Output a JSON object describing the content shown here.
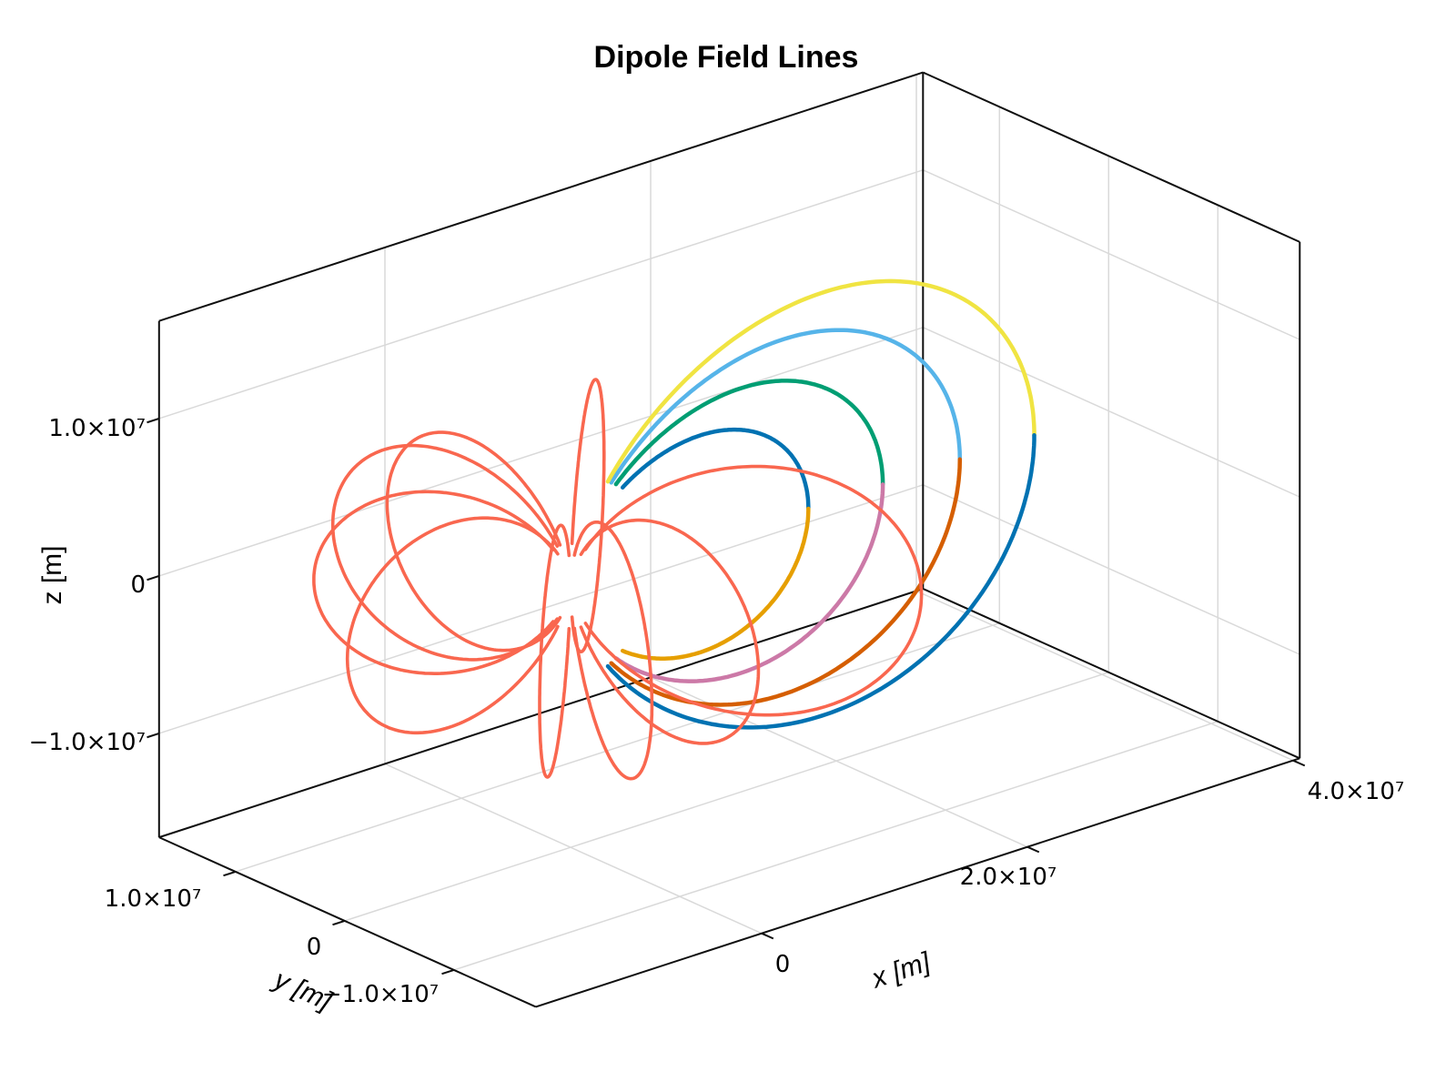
{
  "chart_data": {
    "type": "line",
    "subtype": "3d-field-lines",
    "title": "Dipole Field Lines",
    "xlabel": "x [m]",
    "ylabel": "y [m]",
    "zlabel": "z [m]",
    "xlim": [
      -17000000,
      40500000
    ],
    "ylim": [
      -17500000,
      17000000
    ],
    "zlim": [
      -16600000,
      16200000
    ],
    "grid": true,
    "legend": "none",
    "xticks": {
      "values": [
        0,
        20000000,
        40000000
      ],
      "labels": [
        "0",
        "2.0×10⁷",
        "4.0×10⁷"
      ]
    },
    "yticks": {
      "values": [
        10000000,
        0,
        -10000000
      ],
      "labels": [
        "1.0×10⁷",
        "0",
        "−1.0×10⁷"
      ]
    },
    "zticks": {
      "values": [
        10000000,
        0,
        -10000000
      ],
      "labels": [
        "1.0×10⁷",
        "0",
        "−1.0×10⁷"
      ]
    },
    "colors": {
      "background": "#FFFFFF",
      "grid": "#D9D9D9",
      "axis_spine": "#0E0E0E",
      "red_field_line": "#F9674F",
      "wong_palette": [
        "#0072B2",
        "#E69F00",
        "#009E73",
        "#CC79A7",
        "#56B4E9",
        "#D55E00",
        "#F0E442"
      ]
    },
    "field_lines": {
      "model": "dipole r = L*cos^2(lambda)",
      "colored_start_radius_m": 6500000,
      "red_start_radius_m": 2500000,
      "colored": [
        {
          "phi_deg": 0,
          "L_m": 17900000,
          "upper_color": "#0072B2",
          "lower_color": "#E69F00"
        },
        {
          "phi_deg": 0,
          "L_m": 23500000,
          "upper_color": "#009E73",
          "lower_color": "#CC79A7"
        },
        {
          "phi_deg": 0,
          "L_m": 29300000,
          "upper_color": "#56B4E9",
          "lower_color": "#D55E00"
        },
        {
          "phi_deg": 0,
          "L_m": 34900000,
          "upper_color": "#F0E442",
          "lower_color": "#0072B2"
        }
      ],
      "red_loops": [
        {
          "phi_deg": 45,
          "L_m": 20000000
        },
        {
          "phi_deg": 90,
          "L_m": 16800000
        },
        {
          "phi_deg": 105,
          "L_m": 17000000
        },
        {
          "phi_deg": 135,
          "L_m": 15000000
        },
        {
          "phi_deg": 180,
          "L_m": 16800000
        },
        {
          "phi_deg": 225,
          "L_m": 18500000
        },
        {
          "phi_deg": 245,
          "L_m": 19000000
        },
        {
          "phi_deg": 270,
          "L_m": 17200000
        },
        {
          "phi_deg": 315,
          "L_m": 20500000
        }
      ]
    }
  }
}
